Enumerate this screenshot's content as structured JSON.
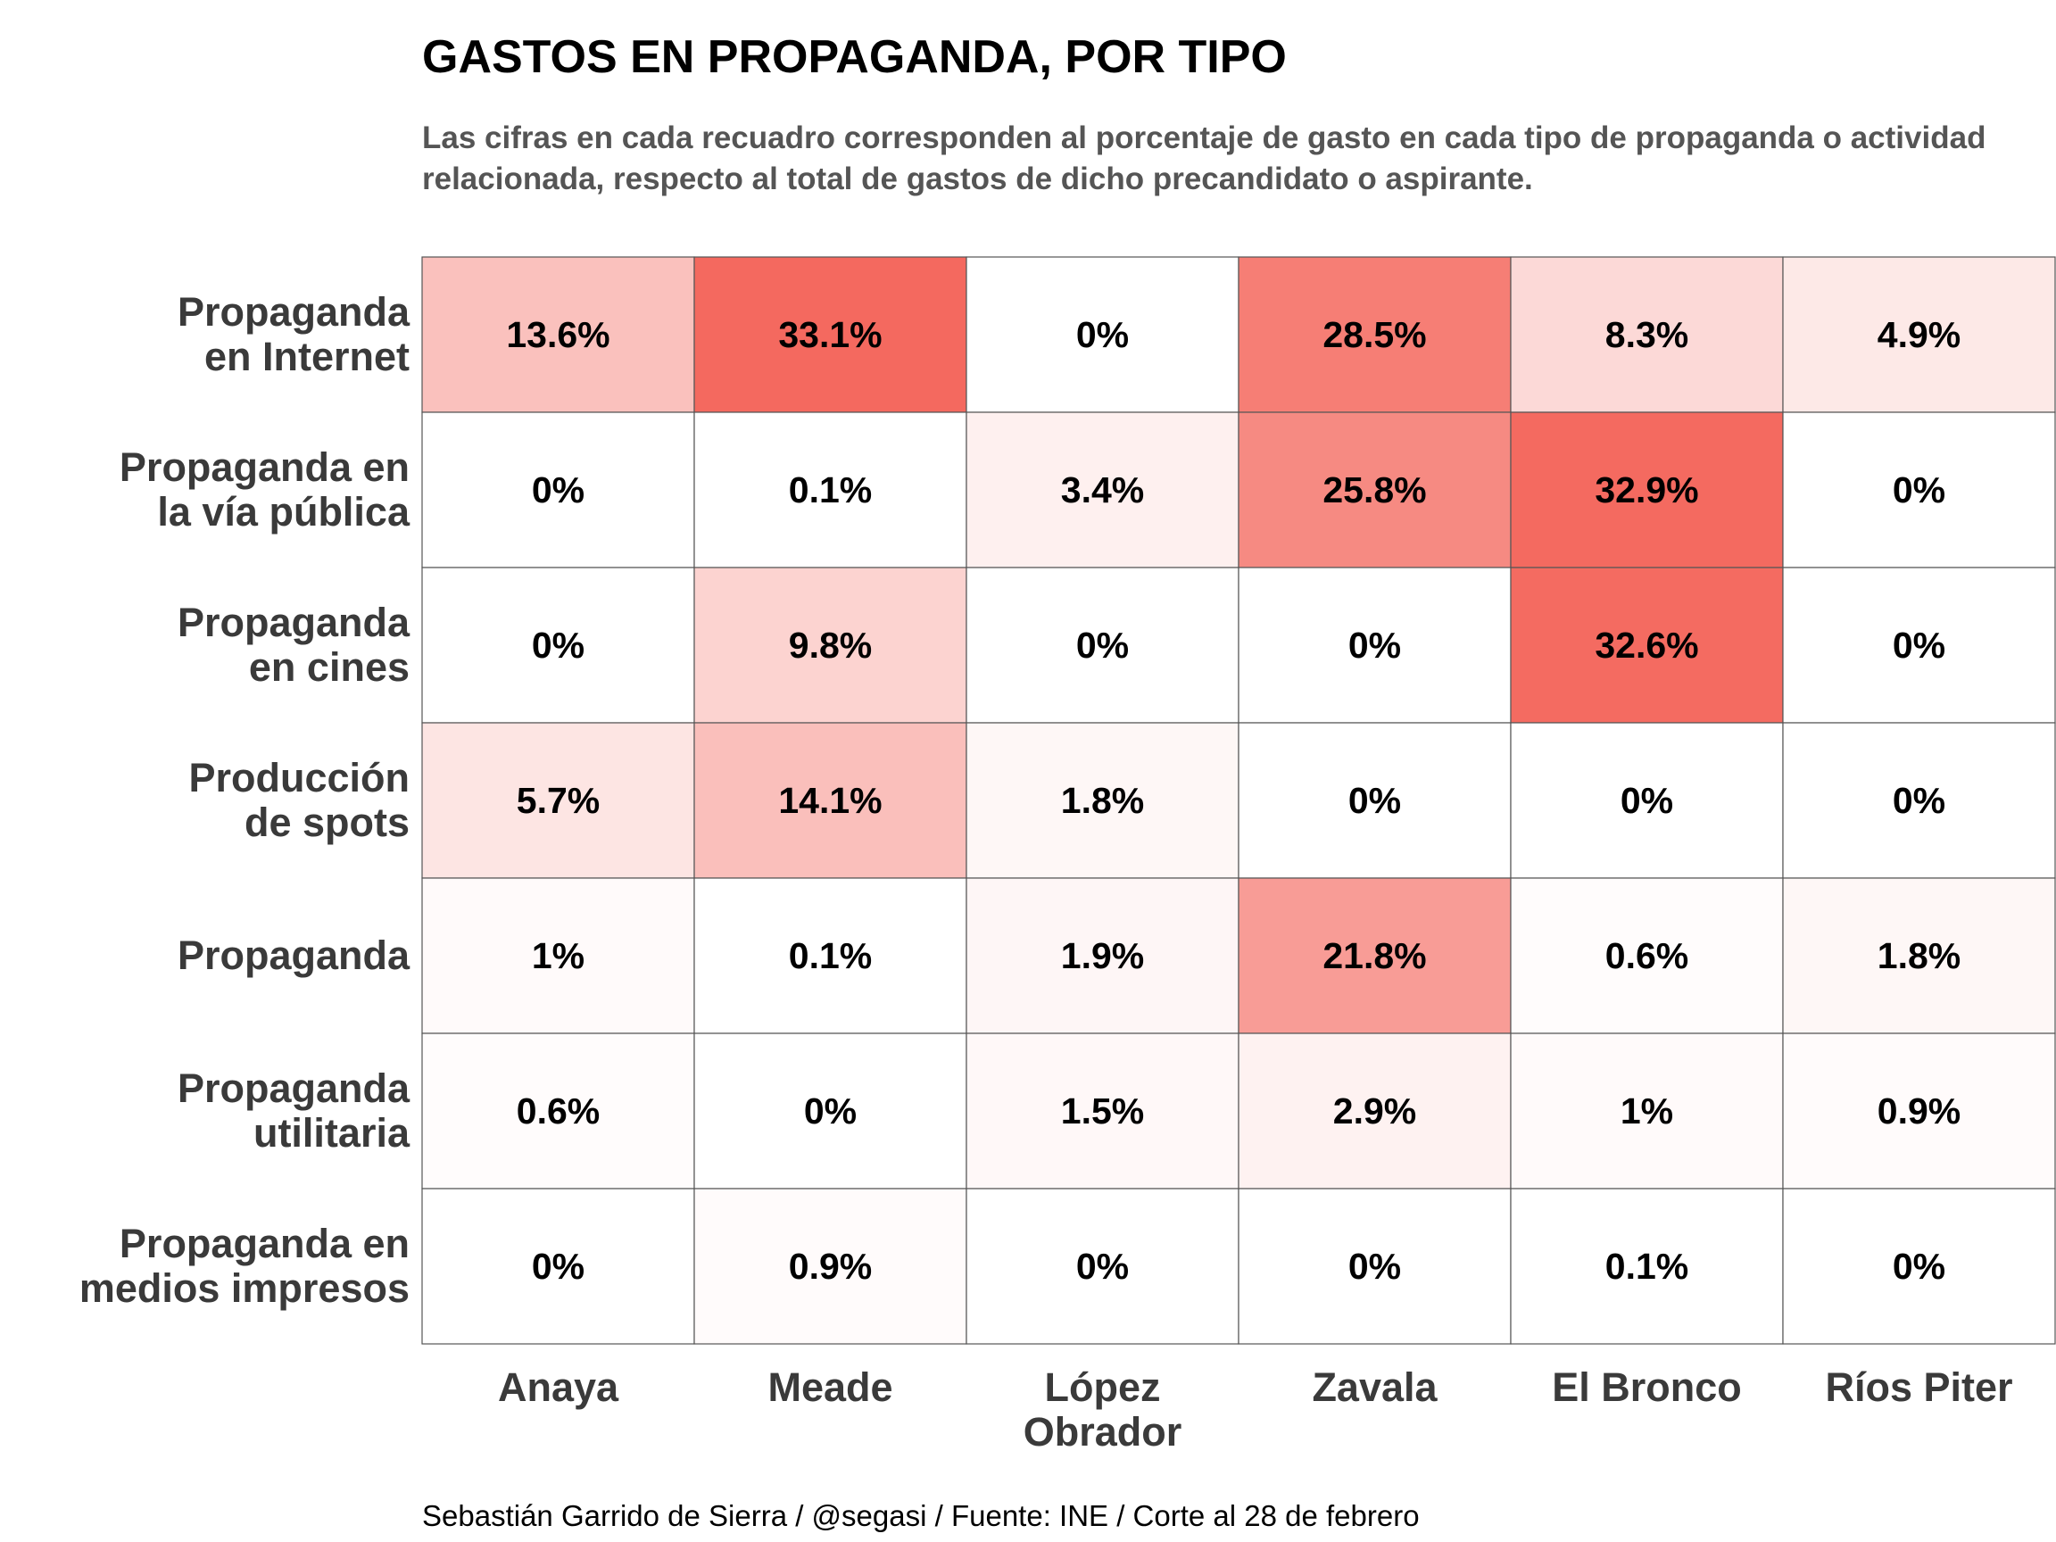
{
  "title": "GASTOS EN PROPAGANDA, POR TIPO",
  "subtitle": "Las cifras en cada recuadro corresponden al porcentaje de gasto en cada tipo de propaganda o actividad relacionada, respecto al total de gastos de dicho precandidato o aspirante.",
  "caption": "Sebastián Garrido de Sierra / @segasi / Fuente: INE / Corte al 28 de febrero",
  "colors": {
    "high": "#f4695f",
    "low": "#ffffff",
    "border": "#555555"
  },
  "chart_data": {
    "type": "heatmap",
    "x": [
      [
        "Anaya"
      ],
      [
        "Meade"
      ],
      [
        "López",
        "Obrador"
      ],
      [
        "Zavala"
      ],
      [
        "El Bronco"
      ],
      [
        "Ríos Piter"
      ]
    ],
    "y": [
      [
        "Propaganda",
        "en Internet"
      ],
      [
        "Propaganda en",
        "la vía pública"
      ],
      [
        "Propaganda",
        "en cines"
      ],
      [
        "Producción",
        "de spots"
      ],
      [
        "Propaganda"
      ],
      [
        "Propaganda",
        "utilitaria"
      ],
      [
        "Propaganda en",
        "medios impresos"
      ]
    ],
    "values": [
      [
        13.6,
        33.1,
        0,
        28.5,
        8.3,
        4.9
      ],
      [
        0,
        0.1,
        3.4,
        25.8,
        32.9,
        0
      ],
      [
        0,
        9.8,
        0,
        0,
        32.6,
        0
      ],
      [
        5.7,
        14.1,
        1.8,
        0,
        0,
        0
      ],
      [
        1,
        0.1,
        1.9,
        21.8,
        0.6,
        1.8
      ],
      [
        0.6,
        0,
        1.5,
        2.9,
        1,
        0.9
      ],
      [
        0,
        0.9,
        0,
        0,
        0.1,
        0
      ]
    ],
    "labels": [
      [
        "13.6%",
        "33.1%",
        "0%",
        "28.5%",
        "8.3%",
        "4.9%"
      ],
      [
        "0%",
        "0.1%",
        "3.4%",
        "25.8%",
        "32.9%",
        "0%"
      ],
      [
        "0%",
        "9.8%",
        "0%",
        "0%",
        "32.6%",
        "0%"
      ],
      [
        "5.7%",
        "14.1%",
        "1.8%",
        "0%",
        "0%",
        "0%"
      ],
      [
        "1%",
        "0.1%",
        "1.9%",
        "21.8%",
        "0.6%",
        "1.8%"
      ],
      [
        "0.6%",
        "0%",
        "1.5%",
        "2.9%",
        "1%",
        "0.9%"
      ],
      [
        "0%",
        "0.9%",
        "0%",
        "0%",
        "0.1%",
        "0%"
      ]
    ],
    "color_range": [
      0,
      33.1
    ]
  }
}
